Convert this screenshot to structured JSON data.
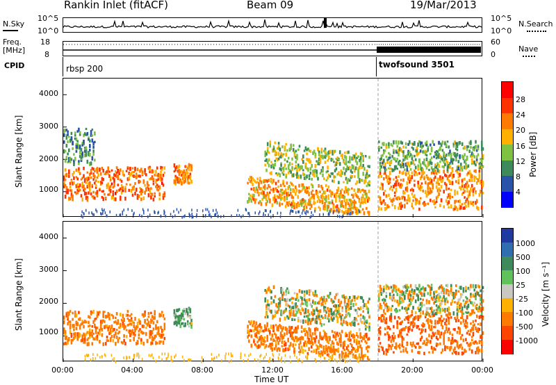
{
  "header": {
    "station": "Rankin Inlet (fitACF)",
    "beam": "Beam 09",
    "date": "19/Mar/2013"
  },
  "top_panels": {
    "nsky_label": "N.Sky",
    "nsky_ticks": [
      "10^5",
      "10^0"
    ],
    "nsky_right_ticks": [
      "10^5",
      "10^0"
    ],
    "nsearch_label": "N.Search",
    "freq_label_line1": "Freq.",
    "freq_label_line2": "[MHz]",
    "freq_ticks": [
      "18",
      "8"
    ],
    "nave_ticks": [
      "60",
      "0"
    ],
    "nave_label": "Nave",
    "cpid_label": "CPID",
    "cpid_segments": [
      {
        "name": "rbsp 200",
        "start_hour": 0
      },
      {
        "name": "twofsound 3501",
        "start_hour": 18
      }
    ]
  },
  "power_panel": {
    "ylabel": "Slant Range [km]",
    "yticks": [
      "4000",
      "3000",
      "2000",
      "1000"
    ],
    "colorbar_label": "Power [dB]",
    "colorbar_ticks": [
      "28",
      "24",
      "20",
      "16",
      "12",
      "8",
      "4"
    ],
    "colorbar_colors": [
      "#ff0000",
      "#ff3300",
      "#ff7a00",
      "#ffb000",
      "#7fc241",
      "#3e8a5a",
      "#2a52a8",
      "#0000ff"
    ]
  },
  "velocity_panel": {
    "ylabel": "Slant Range [km]",
    "yticks": [
      "4000",
      "3000",
      "2000",
      "1000"
    ],
    "colorbar_label": "Velocity [m s⁻¹]",
    "colorbar_ticks": [
      "1000",
      "500",
      "100",
      "25",
      "-25",
      "-100",
      "-500",
      "-1000"
    ],
    "colorbar_colors": [
      "#1f3aa0",
      "#2f6fb0",
      "#3e8a5a",
      "#5fc25a",
      "#c8c8c0",
      "#ffb000",
      "#ff7a00",
      "#ff4400",
      "#ff0000"
    ]
  },
  "x_axis": {
    "label": "Time UT",
    "ticks": [
      "00:00",
      "04:00",
      "08:00",
      "12:00",
      "16:00",
      "20:00",
      "00:00"
    ]
  },
  "chart_data": [
    {
      "type": "heatmap",
      "title": "Rankin Inlet (fitACF) Beam 09 19/Mar/2013",
      "quantity": "Power [dB]",
      "xlabel": "Time UT",
      "ylabel": "Slant Range [km]",
      "xlim": [
        0,
        24
      ],
      "ylim": [
        200,
        4500
      ],
      "clim": [
        0,
        32
      ],
      "bands": [
        {
          "t_start": 0.0,
          "t_end": 5.8,
          "r_low": 800,
          "r_high": 1800,
          "power": 24
        },
        {
          "t_start": 0.0,
          "t_end": 1.8,
          "r_low": 1900,
          "r_high": 3000,
          "power": 8
        },
        {
          "t_start": 6.3,
          "t_end": 7.3,
          "r_low": 1300,
          "r_high": 1900,
          "power": 22
        },
        {
          "t_start": 10.5,
          "t_end": 17.5,
          "r_low": 700,
          "r_high": 1500,
          "power": 20
        },
        {
          "t_start": 11.5,
          "t_end": 17.5,
          "r_low": 1600,
          "r_high": 2600,
          "power": 14
        },
        {
          "t_start": 18.0,
          "t_end": 24.0,
          "r_low": 500,
          "r_high": 1700,
          "power": 22
        },
        {
          "t_start": 18.0,
          "t_end": 24.0,
          "r_low": 1700,
          "r_high": 2600,
          "power": 12
        }
      ]
    },
    {
      "type": "heatmap",
      "quantity": "Velocity [m s-1]",
      "xlabel": "Time UT",
      "ylabel": "Slant Range [km]",
      "xlim": [
        0,
        24
      ],
      "ylim": [
        200,
        4500
      ],
      "clim": [
        -1000,
        1000
      ],
      "bands": [
        {
          "t_start": 0.0,
          "t_end": 5.8,
          "r_low": 800,
          "r_high": 1800,
          "velocity": -300
        },
        {
          "t_start": 6.3,
          "t_end": 7.3,
          "r_low": 1300,
          "r_high": 1900,
          "velocity": 200
        },
        {
          "t_start": 10.5,
          "t_end": 17.5,
          "r_low": 700,
          "r_high": 1500,
          "velocity": -300
        },
        {
          "t_start": 11.5,
          "t_end": 17.5,
          "r_low": 1600,
          "r_high": 2600,
          "velocity": 0
        },
        {
          "t_start": 18.0,
          "t_end": 24.0,
          "r_low": 500,
          "r_high": 1700,
          "velocity": -400
        },
        {
          "t_start": 18.0,
          "t_end": 24.0,
          "r_low": 1700,
          "r_high": 2600,
          "velocity": 0
        }
      ]
    }
  ]
}
